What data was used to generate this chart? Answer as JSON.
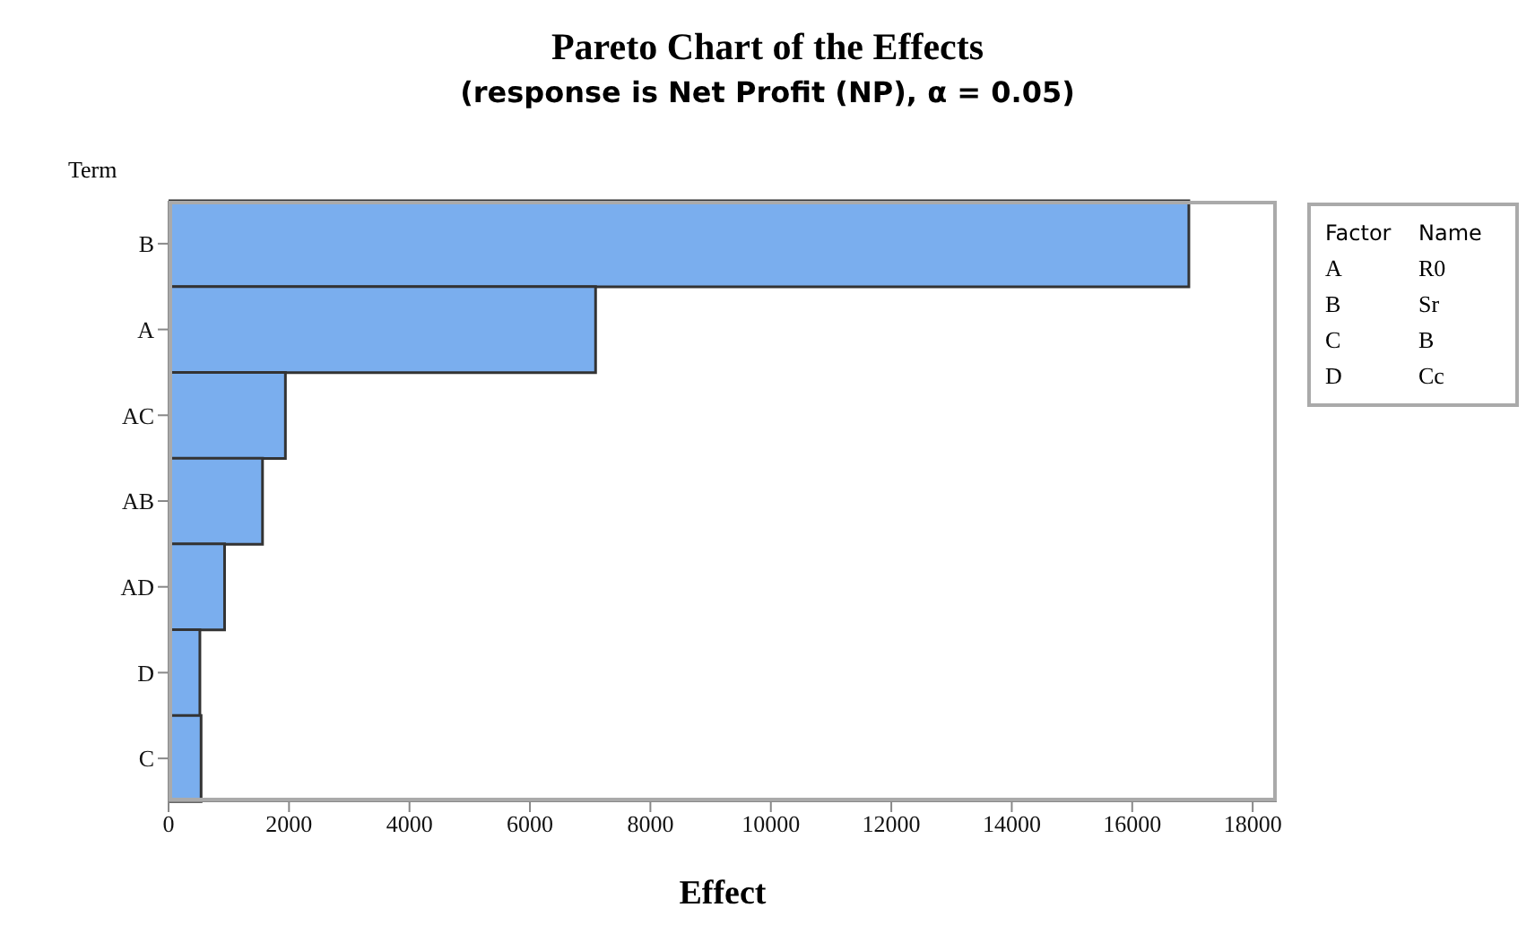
{
  "chart_data": {
    "type": "bar",
    "orientation": "horizontal",
    "title": "Pareto Chart of the Effects",
    "subtitle": "(response is Net Profit (NP), α = 0.05)",
    "xlabel": "Effect",
    "ylabel": "Term",
    "categories": [
      "B",
      "A",
      "AC",
      "AB",
      "AD",
      "D",
      "C"
    ],
    "values": [
      16940,
      7090,
      1940,
      1560,
      930,
      520,
      540
    ],
    "color": "#7aaeee",
    "xlim": [
      0,
      18400
    ],
    "xticks": [
      0,
      2000,
      4000,
      6000,
      8000,
      10000,
      12000,
      14000,
      16000,
      18000
    ],
    "annotations": [
      "Factor",
      "Name",
      "A",
      "R0",
      "B",
      "Sr",
      "C",
      "B",
      "D",
      "Cc"
    ]
  }
}
